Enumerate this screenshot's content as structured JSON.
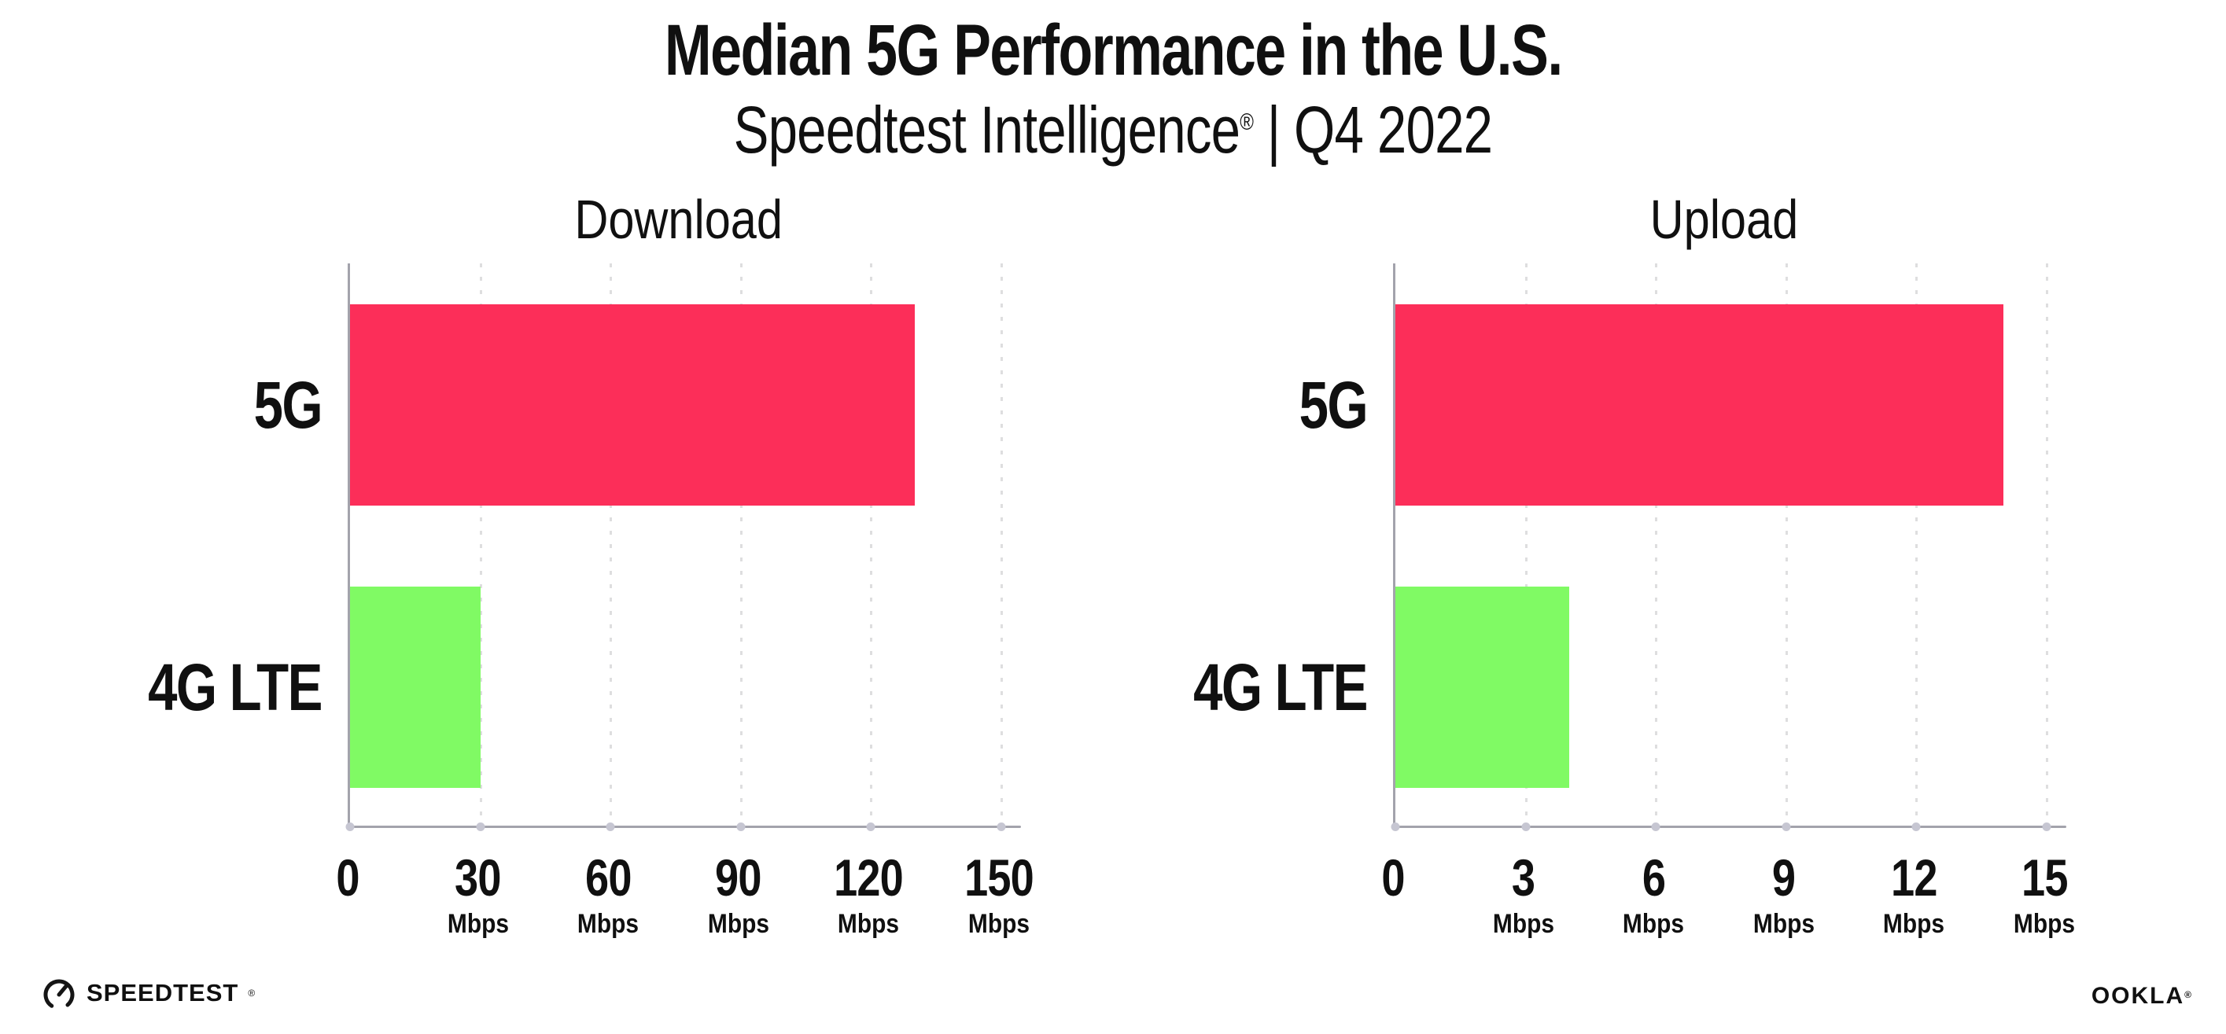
{
  "header": {
    "title": "Median 5G Performance in the U.S.",
    "subtitle": {
      "brand": "Speedtest Intelligence",
      "reg": "®",
      "divider": "|",
      "period": "Q4 2022"
    }
  },
  "colors": {
    "bar_5g": "#FC2E59",
    "bar_4g_lte": "#80FA64",
    "axis": "#A3A3AC",
    "gridline": "#DEDEDF",
    "text": "#101010"
  },
  "chart_data": [
    {
      "type": "bar",
      "orientation": "horizontal",
      "title": "Download",
      "categories": [
        "5G",
        "4G LTE"
      ],
      "values": [
        130,
        30
      ],
      "unit": "Mbps",
      "ticks": [
        0,
        30,
        60,
        90,
        120,
        150
      ],
      "xlim": [
        0,
        152
      ],
      "series_colors": [
        "#FC2E59",
        "#80FA64"
      ],
      "grid": "dotted-vertical",
      "legend": "none"
    },
    {
      "type": "bar",
      "orientation": "horizontal",
      "title": "Upload",
      "categories": [
        "5G",
        "4G LTE"
      ],
      "values": [
        14,
        4
      ],
      "unit": "Mbps",
      "ticks": [
        0,
        3,
        6,
        9,
        12,
        15
      ],
      "xlim": [
        0,
        15.2
      ],
      "series_colors": [
        "#FC2E59",
        "#80FA64"
      ],
      "grid": "dotted-vertical",
      "legend": "none"
    }
  ],
  "footer": {
    "speedtest_label": "SPEEDTEST",
    "speedtest_reg": "®",
    "ookla_label": "OOKLA",
    "ookla_reg": "®"
  }
}
